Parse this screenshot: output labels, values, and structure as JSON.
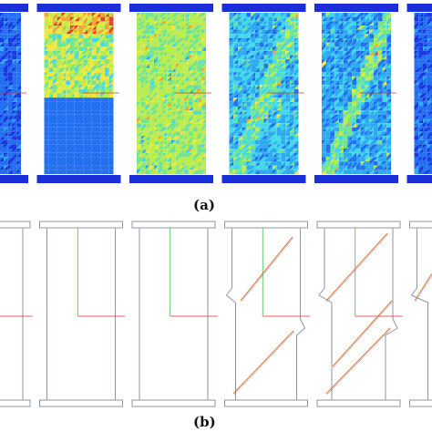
{
  "captions": {
    "a": "(a)",
    "b": "(b)"
  },
  "colors": {
    "frame_blue": "#1a2fd8",
    "contour_palette": [
      "#1533e0",
      "#1e6cf0",
      "#29a8f2",
      "#3fd7e8",
      "#6fe38e",
      "#b9ec4a",
      "#f2e63a",
      "#f4a32e",
      "#e2402a"
    ],
    "outline_gray": "#8f95a6",
    "axis_green": "#3fbf4c",
    "axis_red": "#d8352a",
    "crack_orange": "#e07a30",
    "crack_blue": "#2a3fd0"
  },
  "panels": [
    {
      "id": "a1",
      "pattern": "partial"
    },
    {
      "id": "a2",
      "pattern": "hot-top-blue-bottom"
    },
    {
      "id": "a3",
      "pattern": "uniform-green"
    },
    {
      "id": "a4",
      "pattern": "diagonal-band"
    },
    {
      "id": "a5",
      "pattern": "diagonal-band-strong"
    },
    {
      "id": "a6",
      "pattern": "partial"
    }
  ],
  "deformed_stages": [
    {
      "id": "b1",
      "cracks": 0
    },
    {
      "id": "b2",
      "cracks": 0
    },
    {
      "id": "b3",
      "cracks": 0
    },
    {
      "id": "b4",
      "cracks": 2
    },
    {
      "id": "b5",
      "cracks": 3
    },
    {
      "id": "b6",
      "cracks": 1
    }
  ]
}
